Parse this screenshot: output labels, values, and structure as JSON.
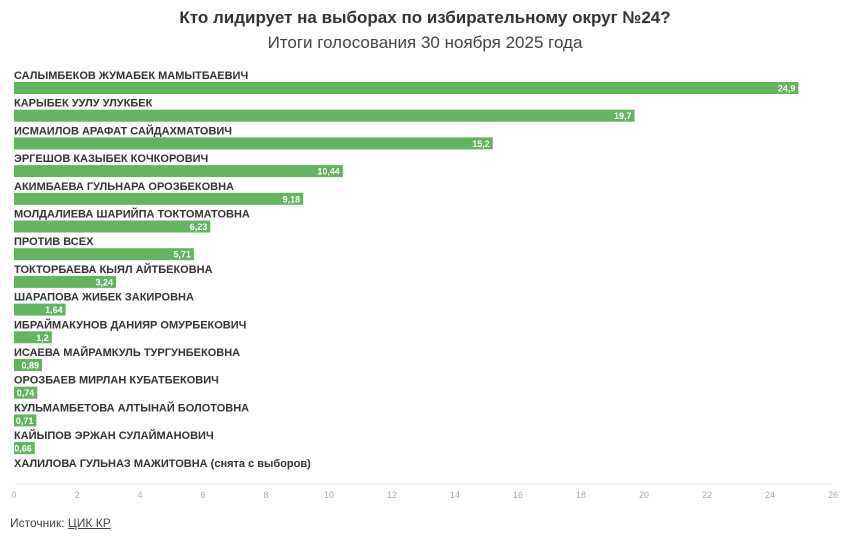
{
  "chart_data": {
    "type": "bar",
    "orientation": "horizontal",
    "title": "Кто лидирует на выборах по избирательному округ №24?",
    "subtitle": "Итоги голосования 30 ноября 2025 года",
    "categories": [
      "САЛЫМБЕКОВ ЖУМАБЕК МАМЫТБАЕВИЧ",
      "КАРЫБЕК УУЛУ УЛУКБЕК",
      "ИСМАИЛОВ АРАФАТ САЙДАХМАТОВИЧ",
      "ЭРГЕШОВ КАЗЫБЕК КОЧКОРОВИЧ",
      "АКИМБАЕВА ГУЛЬНАРА ОРОЗБЕКОВНА",
      "МОЛДАЛИЕВА ШАРИЙПА ТОКТОМАТОВНА",
      "ПРОТИВ ВСЕХ",
      "ТОКТОРБАЕВА КЫЯЛ АЙТБЕКОВНА",
      "ШАРАПОВА ЖИБЕК ЗАКИРОВНА",
      "ИБРАЙМАКУНОВ ДАНИЯР ОМУРБЕКОВИЧ",
      "ИСАЕВА МАЙРАМКУЛЬ ТУРГУНБЕКОВНА",
      "ОРОЗБАЕВ МИРЛАН КУБАТБЕКОВИЧ",
      "КУЛЬМАМБЕТОВА АЛТЫНАЙ БОЛОТОВНА",
      "КАЙЫПОВ ЭРЖАН СУЛАЙМАНОВИЧ",
      "ХАЛИЛОВА ГУЛЬНАЗ МАЖИТОВНА (снята с выборов)"
    ],
    "values": [
      24.9,
      19.7,
      15.2,
      10.44,
      9.18,
      6.23,
      5.71,
      3.24,
      1.64,
      1.2,
      0.89,
      0.74,
      0.71,
      0.66,
      null
    ],
    "value_labels": [
      "24,9",
      "19,7",
      "15,2",
      "10,44",
      "9,18",
      "6,23",
      "5,71",
      "3,24",
      "1,64",
      "1,2",
      "0,89",
      "0,74",
      "0,71",
      "0,66",
      ""
    ],
    "xlim": [
      0,
      26
    ],
    "x_ticks": [
      "0",
      "2",
      "4",
      "6",
      "8",
      "10",
      "12",
      "14",
      "16",
      "18",
      "20",
      "22",
      "24",
      "26"
    ],
    "grid": false,
    "legend": "none",
    "bar_color": "#62b55e"
  },
  "source": {
    "label": "Источник:",
    "link": "ЦИК КР"
  }
}
